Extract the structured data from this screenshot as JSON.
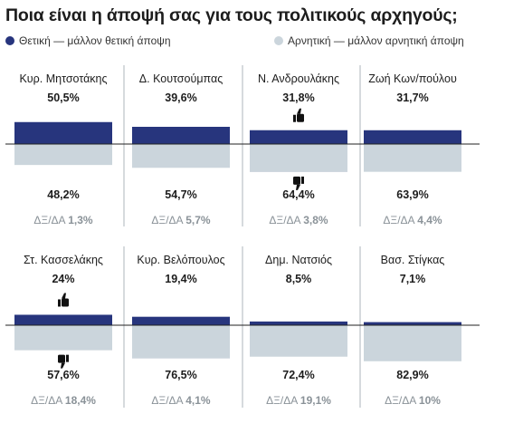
{
  "title": "Ποια είναι η άποψή σας για τους πολιτικούς αρχηγούς;",
  "legend": {
    "positive": "Θετική — μάλλον θετική άποψη",
    "negative": "Αρνητική — μάλλον αρνητική άποψη"
  },
  "colors": {
    "positive": "#27357d",
    "negative": "#cbd5dc",
    "axis": "#222222",
    "divider": "#9aa3ab",
    "dk_label": "#8a9298",
    "text": "#1d1d1d",
    "icon": "#111111"
  },
  "icons": {
    "positive": "thumbs-up-icon",
    "negative": "thumbs-down-icon"
  },
  "chart_data": {
    "type": "bar",
    "title": "Ποια είναι η άποψή σας για τους πολιτικούς αρχηγούς;",
    "legend_position": "top",
    "unit": "%",
    "dk_prefix": "ΔΞ/ΔΑ",
    "categories": [
      "Κυρ. Μητσοτάκης",
      "Δ. Κουτσούμπας",
      "Ν. Ανδρουλάκης",
      "Ζωή Κων/πούλου",
      "Στ. Κασσελάκης",
      "Κυρ. Βελόπουλος",
      "Δημ. Νατσιός",
      "Βασ. Στίγκας"
    ],
    "series": [
      {
        "name": "Θετική — μάλλον θετική άποψη",
        "values": [
          50.5,
          39.6,
          31.8,
          31.7,
          24,
          19.4,
          8.5,
          7.1
        ],
        "labels": [
          "50,5%",
          "39,6%",
          "31,8%",
          "31,7%",
          "24%",
          "19,4%",
          "8,5%",
          "7,1%"
        ]
      },
      {
        "name": "Αρνητική — μάλλον αρνητική άποψη",
        "values": [
          48.2,
          54.7,
          64.4,
          63.9,
          57.6,
          76.5,
          72.4,
          82.9
        ],
        "labels": [
          "48,2%",
          "54,7%",
          "64,4%",
          "63,9%",
          "57,6%",
          "76,5%",
          "72,4%",
          "82,9%"
        ]
      }
    ],
    "dk_values": [
      1.3,
      5.7,
      3.8,
      4.4,
      18.4,
      4.1,
      19.1,
      10
    ],
    "dk_labels": [
      "1,3%",
      "5,7%",
      "3,8%",
      "4,4%",
      "18,4%",
      "4,1%",
      "19,1%",
      "10%"
    ],
    "icon_panels": [
      2,
      4
    ]
  }
}
